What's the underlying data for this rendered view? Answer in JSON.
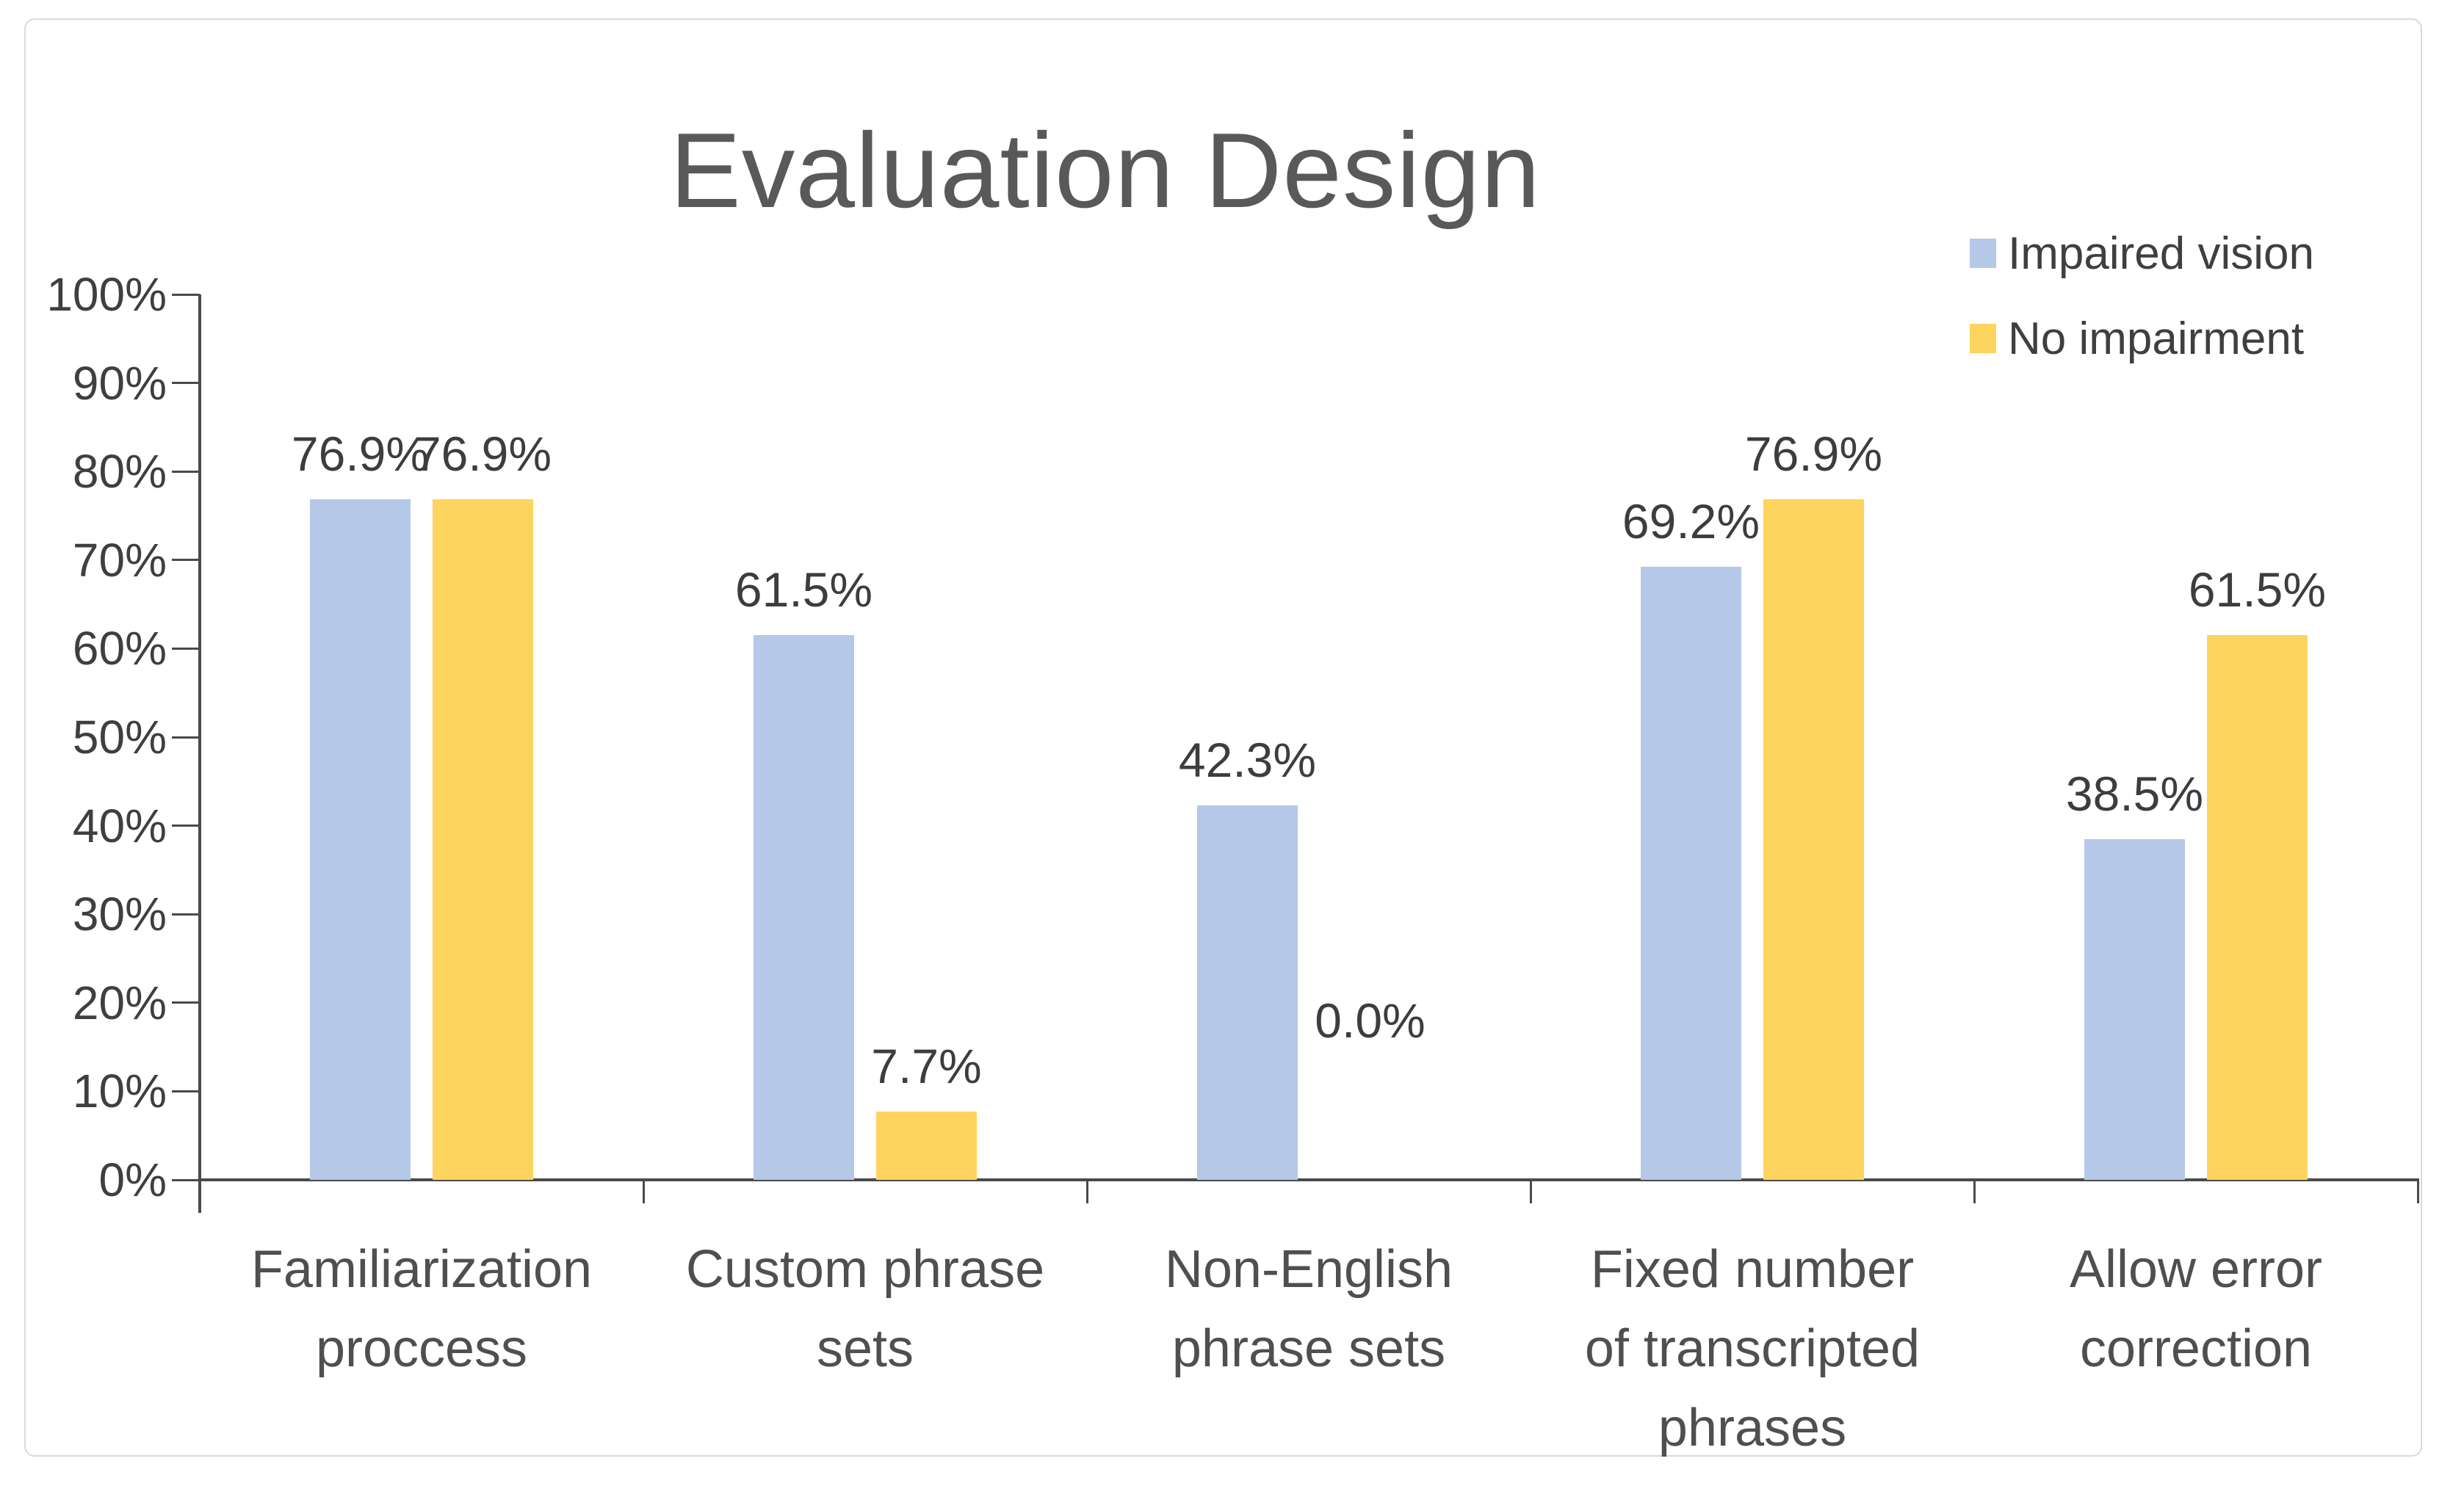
{
  "window": {
    "background": "#ffffff",
    "card_border_color": "#d9d9d9"
  },
  "chart_data": {
    "type": "bar",
    "title": "Evaluation Design",
    "categories": [
      "Familiarization proccess",
      "Custom phrase sets",
      "Non-English phrase sets",
      "Fixed number of transcripted phrases",
      "Allow error correction"
    ],
    "category_lines": [
      [
        "Familiarization",
        "proccess"
      ],
      [
        "Custom phrase",
        "sets"
      ],
      [
        "Non-English",
        "phrase sets"
      ],
      [
        "Fixed number",
        "of transcripted",
        "phrases"
      ],
      [
        "Allow error",
        "correction"
      ]
    ],
    "series": [
      {
        "name": "Impaired vision",
        "color": "#B5C8E8",
        "values": [
          76.9,
          61.5,
          42.3,
          69.2,
          38.5
        ],
        "labels": [
          "76.9%",
          "61.5%",
          "42.3%",
          "69.2%",
          "38.5%"
        ]
      },
      {
        "name": "No impairment",
        "color": "#FCD45E",
        "values": [
          76.9,
          7.7,
          0.0,
          76.9,
          61.5
        ],
        "labels": [
          "76.9%",
          "7.7%",
          "0.0%",
          "76.9%",
          "61.5%"
        ]
      }
    ],
    "xlabel": "",
    "ylabel": "",
    "ylim": [
      0,
      100
    ],
    "y_tick_step": 10,
    "y_tick_labels": [
      "0%",
      "10%",
      "20%",
      "30%",
      "40%",
      "50%",
      "60%",
      "70%",
      "80%",
      "90%",
      "100%"
    ],
    "grid": false,
    "legend_position": "top-right",
    "colors": {
      "title": "#595959",
      "data_label": "#3d3d3d",
      "axis_label": "#3f3f3f",
      "category_label": "#4f4f4f",
      "axis_line": "#4a4a4a"
    }
  }
}
